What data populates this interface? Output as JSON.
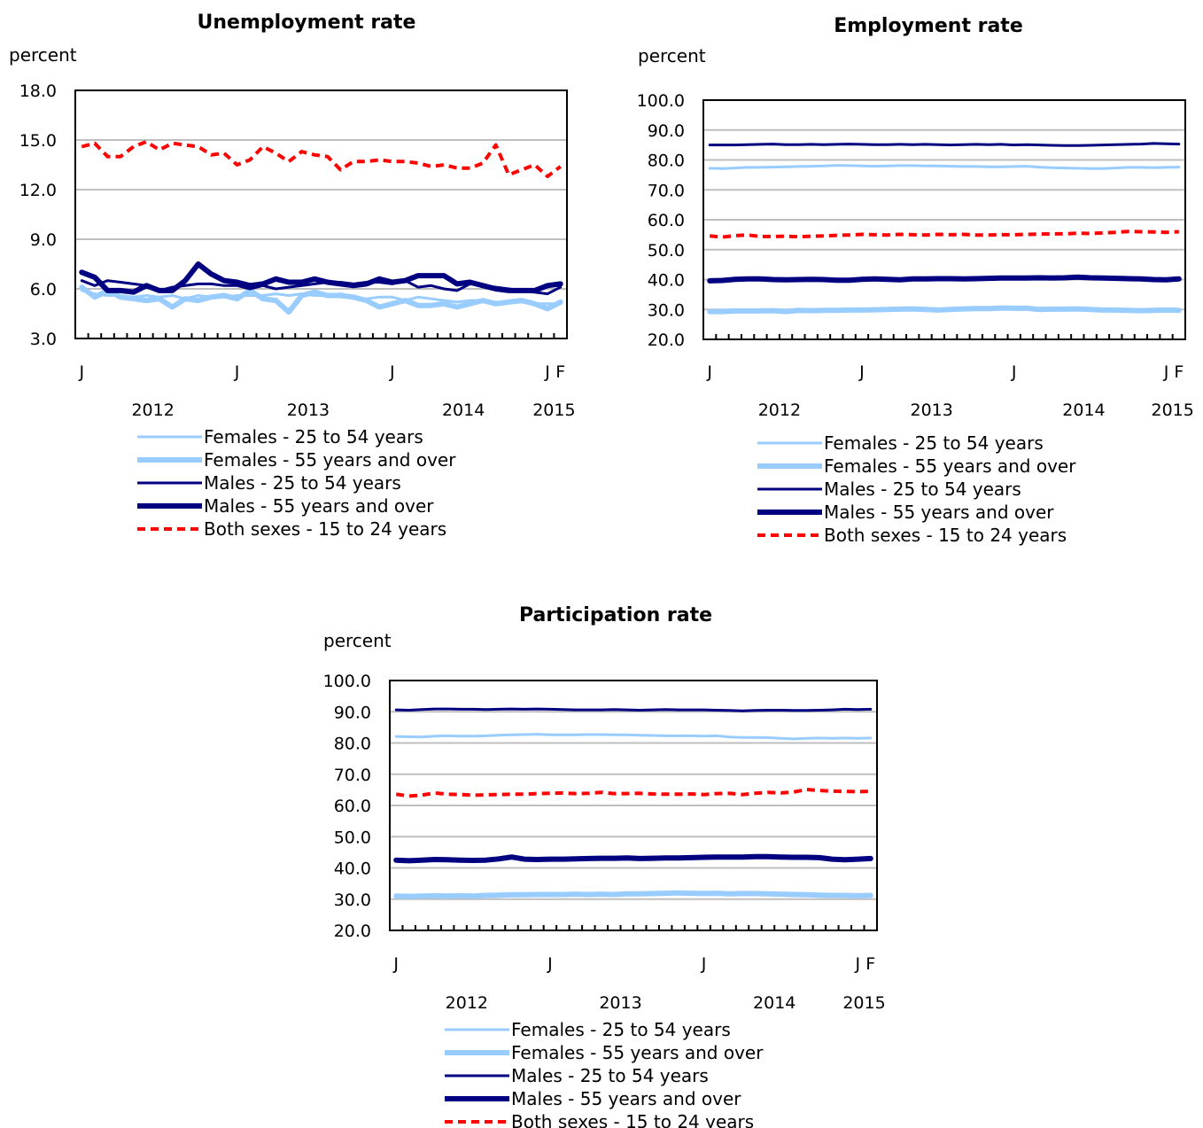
{
  "chart_data": [
    {
      "type": "line",
      "title": "Unemployment rate",
      "ylabel": "percent",
      "ylim": [
        3.0,
        18.0
      ],
      "yticks": [
        "3.0",
        "6.0",
        "9.0",
        "12.0",
        "15.0",
        "18.0"
      ],
      "x": [
        "2012-01",
        "2012-02",
        "2012-03",
        "2012-04",
        "2012-05",
        "2012-06",
        "2012-07",
        "2012-08",
        "2012-09",
        "2012-10",
        "2012-11",
        "2012-12",
        "2013-01",
        "2013-02",
        "2013-03",
        "2013-04",
        "2013-05",
        "2013-06",
        "2013-07",
        "2013-08",
        "2013-09",
        "2013-10",
        "2013-11",
        "2013-12",
        "2014-01",
        "2014-02",
        "2014-03",
        "2014-04",
        "2014-05",
        "2014-06",
        "2014-07",
        "2014-08",
        "2014-09",
        "2014-10",
        "2014-11",
        "2014-12",
        "2015-01",
        "2015-02"
      ],
      "month_tick_labels": [
        "J",
        "J",
        "J",
        "J",
        "F"
      ],
      "year_labels": [
        "2012",
        "2013",
        "2014",
        "2015"
      ],
      "series": [
        {
          "name": "Females - 25 to 54 years",
          "color": "#99ccff",
          "width": 3,
          "dash": false,
          "values": [
            5.9,
            5.7,
            5.6,
            5.6,
            5.5,
            5.6,
            5.5,
            5.6,
            5.4,
            5.6,
            5.5,
            5.5,
            5.6,
            5.6,
            5.6,
            5.7,
            5.6,
            5.7,
            5.6,
            5.6,
            5.7,
            5.5,
            5.4,
            5.5,
            5.5,
            5.3,
            5.5,
            5.4,
            5.3,
            5.2,
            5.3,
            5.3,
            5.2,
            5.2,
            5.2,
            5.1,
            5.1,
            5.1
          ]
        },
        {
          "name": "Females - 55 years and over",
          "color": "#99ccff",
          "width": 6,
          "dash": false,
          "values": [
            6.1,
            5.5,
            5.9,
            5.5,
            5.4,
            5.3,
            5.4,
            4.9,
            5.4,
            5.3,
            5.5,
            5.6,
            5.4,
            5.9,
            5.4,
            5.3,
            4.6,
            5.6,
            5.8,
            5.6,
            5.6,
            5.5,
            5.3,
            4.9,
            5.1,
            5.3,
            5.0,
            5.0,
            5.1,
            4.9,
            5.1,
            5.3,
            5.1,
            5.2,
            5.3,
            5.1,
            4.8,
            5.2
          ]
        },
        {
          "name": "Males - 25 to 54 years",
          "color": "#000080",
          "width": 3,
          "dash": false,
          "values": [
            6.5,
            6.2,
            6.5,
            6.4,
            6.3,
            6.2,
            5.9,
            6.1,
            6.2,
            6.3,
            6.3,
            6.2,
            6.2,
            6.0,
            6.2,
            6.0,
            6.1,
            6.2,
            6.3,
            6.4,
            6.4,
            6.3,
            6.4,
            6.4,
            6.3,
            6.5,
            6.1,
            6.2,
            6.0,
            5.9,
            6.3,
            6.2,
            6.1,
            6.0,
            5.9,
            5.8,
            5.7,
            6.1
          ]
        },
        {
          "name": "Males - 55 years and over",
          "color": "#000080",
          "width": 6,
          "dash": false,
          "values": [
            7.0,
            6.7,
            5.9,
            5.9,
            5.8,
            6.2,
            5.9,
            5.9,
            6.5,
            7.5,
            6.9,
            6.5,
            6.4,
            6.2,
            6.3,
            6.6,
            6.4,
            6.4,
            6.6,
            6.4,
            6.3,
            6.2,
            6.3,
            6.6,
            6.4,
            6.5,
            6.8,
            6.8,
            6.8,
            6.3,
            6.4,
            6.2,
            6.0,
            5.9,
            5.9,
            5.9,
            6.2,
            6.3
          ]
        },
        {
          "name": "Both sexes - 15 to 24 years",
          "color": "#ff0000",
          "width": 4,
          "dash": true,
          "values": [
            14.6,
            14.8,
            14.0,
            14.0,
            14.6,
            14.9,
            14.4,
            14.8,
            14.7,
            14.6,
            14.1,
            14.2,
            13.5,
            13.8,
            14.6,
            14.2,
            13.7,
            14.3,
            14.1,
            14.0,
            13.2,
            13.7,
            13.7,
            13.8,
            13.7,
            13.7,
            13.6,
            13.4,
            13.5,
            13.3,
            13.3,
            13.6,
            14.7,
            12.9,
            13.2,
            13.5,
            12.8,
            13.4
          ]
        }
      ]
    },
    {
      "type": "line",
      "title": "Employment rate",
      "ylabel": "percent",
      "ylim": [
        20.0,
        100.0
      ],
      "yticks": [
        "20.0",
        "30.0",
        "40.0",
        "50.0",
        "60.0",
        "70.0",
        "80.0",
        "90.0",
        "100.0"
      ],
      "x": [
        "2012-01",
        "2012-02",
        "2012-03",
        "2012-04",
        "2012-05",
        "2012-06",
        "2012-07",
        "2012-08",
        "2012-09",
        "2012-10",
        "2012-11",
        "2012-12",
        "2013-01",
        "2013-02",
        "2013-03",
        "2013-04",
        "2013-05",
        "2013-06",
        "2013-07",
        "2013-08",
        "2013-09",
        "2013-10",
        "2013-11",
        "2013-12",
        "2014-01",
        "2014-02",
        "2014-03",
        "2014-04",
        "2014-05",
        "2014-06",
        "2014-07",
        "2014-08",
        "2014-09",
        "2014-10",
        "2014-11",
        "2014-12",
        "2015-01",
        "2015-02"
      ],
      "month_tick_labels": [
        "J",
        "J",
        "J",
        "J",
        "F"
      ],
      "year_labels": [
        "2012",
        "2013",
        "2014",
        "2015"
      ],
      "series": [
        {
          "name": "Females - 25 to 54 years",
          "color": "#99ccff",
          "width": 3,
          "dash": false,
          "values": [
            77.2,
            77.1,
            77.3,
            77.5,
            77.5,
            77.6,
            77.7,
            77.8,
            77.9,
            78.0,
            78.2,
            78.1,
            78.0,
            77.9,
            78.0,
            78.1,
            78.1,
            78.0,
            78.0,
            77.9,
            77.8,
            77.8,
            77.7,
            77.7,
            77.8,
            77.9,
            77.6,
            77.4,
            77.3,
            77.2,
            77.1,
            77.1,
            77.3,
            77.5,
            77.5,
            77.4,
            77.5,
            77.6
          ]
        },
        {
          "name": "Females - 55 years and over",
          "color": "#99ccff",
          "width": 6,
          "dash": false,
          "values": [
            29.3,
            29.3,
            29.5,
            29.5,
            29.5,
            29.6,
            29.3,
            29.7,
            29.6,
            29.7,
            29.7,
            29.8,
            29.8,
            29.9,
            30.0,
            30.1,
            30.2,
            30.0,
            29.8,
            30.0,
            30.2,
            30.3,
            30.3,
            30.5,
            30.4,
            30.4,
            30.0,
            30.1,
            30.1,
            30.2,
            30.0,
            29.8,
            29.8,
            29.7,
            29.6,
            29.7,
            29.8,
            29.7
          ]
        },
        {
          "name": "Males - 25 to 54 years",
          "color": "#000080",
          "width": 3,
          "dash": false,
          "values": [
            85.0,
            85.0,
            85.0,
            85.1,
            85.2,
            85.3,
            85.1,
            85.1,
            85.2,
            85.1,
            85.2,
            85.3,
            85.2,
            85.1,
            85.1,
            85.2,
            85.1,
            85.2,
            85.1,
            85.0,
            85.1,
            85.2,
            85.1,
            85.2,
            85.0,
            85.1,
            85.0,
            84.9,
            84.8,
            84.8,
            84.9,
            85.0,
            85.1,
            85.2,
            85.3,
            85.5,
            85.4,
            85.3
          ]
        },
        {
          "name": "Males - 55 years and over",
          "color": "#000080",
          "width": 6,
          "dash": false,
          "values": [
            39.6,
            39.7,
            40.1,
            40.2,
            40.2,
            40.0,
            39.9,
            40.0,
            40.1,
            40.0,
            39.8,
            39.8,
            40.1,
            40.2,
            40.1,
            39.9,
            40.2,
            40.2,
            40.3,
            40.3,
            40.2,
            40.3,
            40.4,
            40.5,
            40.5,
            40.5,
            40.6,
            40.5,
            40.6,
            40.8,
            40.6,
            40.5,
            40.4,
            40.3,
            40.2,
            40.0,
            39.9,
            40.2
          ]
        },
        {
          "name": "Both sexes - 15 to 24 years",
          "color": "#ff0000",
          "width": 4,
          "dash": true,
          "values": [
            54.6,
            54.2,
            54.7,
            54.9,
            54.4,
            54.4,
            54.5,
            54.3,
            54.5,
            54.6,
            54.8,
            54.9,
            55.1,
            55.0,
            54.9,
            55.1,
            55.0,
            54.9,
            55.1,
            55.0,
            55.1,
            54.9,
            54.9,
            55.0,
            55.0,
            55.1,
            55.2,
            55.3,
            55.3,
            55.5,
            55.4,
            55.6,
            55.8,
            56.1,
            56.0,
            55.9,
            55.8,
            56.0
          ]
        }
      ]
    },
    {
      "type": "line",
      "title": "Participation rate",
      "ylabel": "percent",
      "ylim": [
        20.0,
        100.0
      ],
      "yticks": [
        "20.0",
        "30.0",
        "40.0",
        "50.0",
        "60.0",
        "70.0",
        "80.0",
        "90.0",
        "100.0"
      ],
      "x": [
        "2012-01",
        "2012-02",
        "2012-03",
        "2012-04",
        "2012-05",
        "2012-06",
        "2012-07",
        "2012-08",
        "2012-09",
        "2012-10",
        "2012-11",
        "2012-12",
        "2013-01",
        "2013-02",
        "2013-03",
        "2013-04",
        "2013-05",
        "2013-06",
        "2013-07",
        "2013-08",
        "2013-09",
        "2013-10",
        "2013-11",
        "2013-12",
        "2014-01",
        "2014-02",
        "2014-03",
        "2014-04",
        "2014-05",
        "2014-06",
        "2014-07",
        "2014-08",
        "2014-09",
        "2014-10",
        "2014-11",
        "2014-12",
        "2015-01",
        "2015-02"
      ],
      "month_tick_labels": [
        "J",
        "J",
        "J",
        "J",
        "F"
      ],
      "year_labels": [
        "2012",
        "2013",
        "2014",
        "2015"
      ],
      "series": [
        {
          "name": "Females - 25 to 54 years",
          "color": "#99ccff",
          "width": 3,
          "dash": false,
          "values": [
            82.1,
            82.0,
            81.9,
            82.2,
            82.3,
            82.2,
            82.2,
            82.3,
            82.5,
            82.6,
            82.7,
            82.8,
            82.6,
            82.6,
            82.6,
            82.7,
            82.7,
            82.6,
            82.6,
            82.5,
            82.4,
            82.3,
            82.3,
            82.3,
            82.2,
            82.3,
            81.9,
            81.8,
            81.8,
            81.7,
            81.5,
            81.3,
            81.5,
            81.6,
            81.5,
            81.6,
            81.5,
            81.6
          ]
        },
        {
          "name": "Females - 55 years and over",
          "color": "#99ccff",
          "width": 6,
          "dash": false,
          "values": [
            31.0,
            30.9,
            31.0,
            31.1,
            31.0,
            31.1,
            31.0,
            31.2,
            31.3,
            31.4,
            31.4,
            31.5,
            31.5,
            31.5,
            31.6,
            31.5,
            31.6,
            31.5,
            31.7,
            31.7,
            31.8,
            31.9,
            32.0,
            31.9,
            31.8,
            31.9,
            31.7,
            31.8,
            31.8,
            31.7,
            31.6,
            31.5,
            31.4,
            31.3,
            31.2,
            31.2,
            31.1,
            31.2
          ]
        },
        {
          "name": "Males - 25 to 54 years",
          "color": "#000080",
          "width": 3,
          "dash": false,
          "values": [
            90.6,
            90.5,
            90.7,
            90.9,
            90.9,
            90.8,
            90.8,
            90.7,
            90.8,
            90.9,
            90.8,
            90.9,
            90.8,
            90.7,
            90.6,
            90.6,
            90.6,
            90.7,
            90.6,
            90.5,
            90.6,
            90.7,
            90.6,
            90.6,
            90.6,
            90.5,
            90.4,
            90.3,
            90.4,
            90.5,
            90.5,
            90.4,
            90.4,
            90.5,
            90.6,
            90.8,
            90.7,
            90.8
          ]
        },
        {
          "name": "Males - 55 years and over",
          "color": "#000080",
          "width": 6,
          "dash": false,
          "values": [
            42.5,
            42.3,
            42.5,
            42.7,
            42.6,
            42.5,
            42.4,
            42.5,
            42.9,
            43.5,
            42.8,
            42.7,
            42.8,
            42.8,
            42.9,
            43.0,
            43.1,
            43.1,
            43.2,
            43.0,
            43.1,
            43.2,
            43.2,
            43.3,
            43.4,
            43.5,
            43.5,
            43.5,
            43.6,
            43.6,
            43.5,
            43.4,
            43.4,
            43.3,
            42.8,
            42.6,
            42.8,
            43.0
          ]
        },
        {
          "name": "Both sexes - 15 to 24 years",
          "color": "#ff0000",
          "width": 4,
          "dash": true,
          "values": [
            63.6,
            63.0,
            63.3,
            64.0,
            63.6,
            63.5,
            63.3,
            63.4,
            63.5,
            63.6,
            63.6,
            63.8,
            63.9,
            64.0,
            63.8,
            63.9,
            64.2,
            63.8,
            63.8,
            63.9,
            63.7,
            63.6,
            63.6,
            63.7,
            63.5,
            63.8,
            63.9,
            63.5,
            63.9,
            64.2,
            64.0,
            64.3,
            65.1,
            64.8,
            64.6,
            64.5,
            64.4,
            64.5
          ]
        }
      ]
    }
  ]
}
